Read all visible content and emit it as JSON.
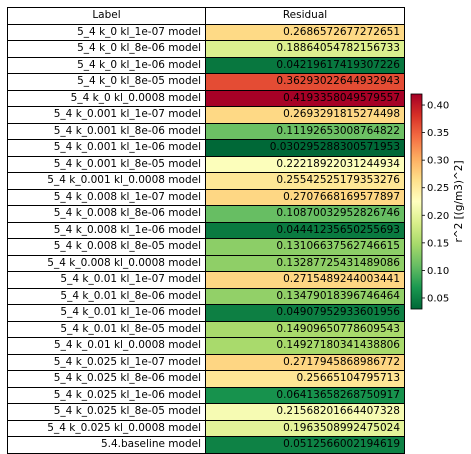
{
  "chart_data": {
    "type": "table",
    "columns": [
      "Label",
      "Residual"
    ],
    "rows": [
      {
        "label": "5_4 k_0 kl_1e-07 model",
        "value": "0.2686572677272651"
      },
      {
        "label": "5_4 k_0 kl_8e-06 model",
        "value": "0.18864054782156733"
      },
      {
        "label": "5_4 k_0 kl_1e-06 model",
        "value": "0.04219617419307226"
      },
      {
        "label": "5_4 k_0 kl_8e-05 model",
        "value": "0.36293022644932943"
      },
      {
        "label": "5_4 k_0 kl_0.0008 model",
        "value": "0.4193358049579557"
      },
      {
        "label": "5_4 k_0.001 kl_1e-07 model",
        "value": "0.2693291815274498"
      },
      {
        "label": "5_4 k_0.001 kl_8e-06 model",
        "value": "0.11192653008764822"
      },
      {
        "label": "5_4 k_0.001 kl_1e-06 model",
        "value": "0.030295288300571953"
      },
      {
        "label": "5_4 k_0.001 kl_8e-05 model",
        "value": "0.22218922031244934"
      },
      {
        "label": "5_4 k_0.001 kl_0.0008 model",
        "value": "0.25542525179353276"
      },
      {
        "label": "5_4 k_0.008 kl_1e-07 model",
        "value": "0.2707668169577897"
      },
      {
        "label": "5_4 k_0.008 kl_8e-06 model",
        "value": "0.10870032952826746"
      },
      {
        "label": "5_4 k_0.008 kl_1e-06 model",
        "value": "0.04441235650255693"
      },
      {
        "label": "5_4 k_0.008 kl_8e-05 model",
        "value": "0.13106637562746615"
      },
      {
        "label": "5_4 k_0.008 kl_0.0008 model",
        "value": "0.13287725431489086"
      },
      {
        "label": "5_4 k_0.01 kl_1e-07 model",
        "value": "0.2715489244003441"
      },
      {
        "label": "5_4 k_0.01 kl_8e-06 model",
        "value": "0.13479018396746464"
      },
      {
        "label": "5_4 k_0.01 kl_1e-06 model",
        "value": "0.04907952933601956"
      },
      {
        "label": "5_4 k_0.01 kl_8e-05 model",
        "value": "0.14909650778609543"
      },
      {
        "label": "5_4 k_0.01 kl_0.0008 model",
        "value": "0.14927180341438806"
      },
      {
        "label": "5_4 k_0.025 kl_1e-07 model",
        "value": "0.2717945868986772"
      },
      {
        "label": "5_4 k_0.025 kl_8e-06 model",
        "value": "0.25665104795713"
      },
      {
        "label": "5_4 k_0.025 kl_1e-06 model",
        "value": "0.06413658268750917"
      },
      {
        "label": "5_4 k_0.025 kl_8e-05 model",
        "value": "0.21568201664407328"
      },
      {
        "label": "5_4 k_0.025 kl_0.0008 model",
        "value": "0.1963508992475024"
      },
      {
        "label": "5.4.baseline model",
        "value": "0.0512566002194619"
      }
    ],
    "colorbar": {
      "label": "r^2 [(g/m3)^2]",
      "range": [
        0.03,
        0.42
      ],
      "ticks": [
        0.05,
        0.1,
        0.15,
        0.2,
        0.25,
        0.3,
        0.35,
        0.4
      ],
      "tick_labels": [
        "0.05",
        "0.10",
        "0.15",
        "0.20",
        "0.25",
        "0.30",
        "0.35",
        "0.40"
      ],
      "colormap": "RdYlGn_r"
    }
  }
}
